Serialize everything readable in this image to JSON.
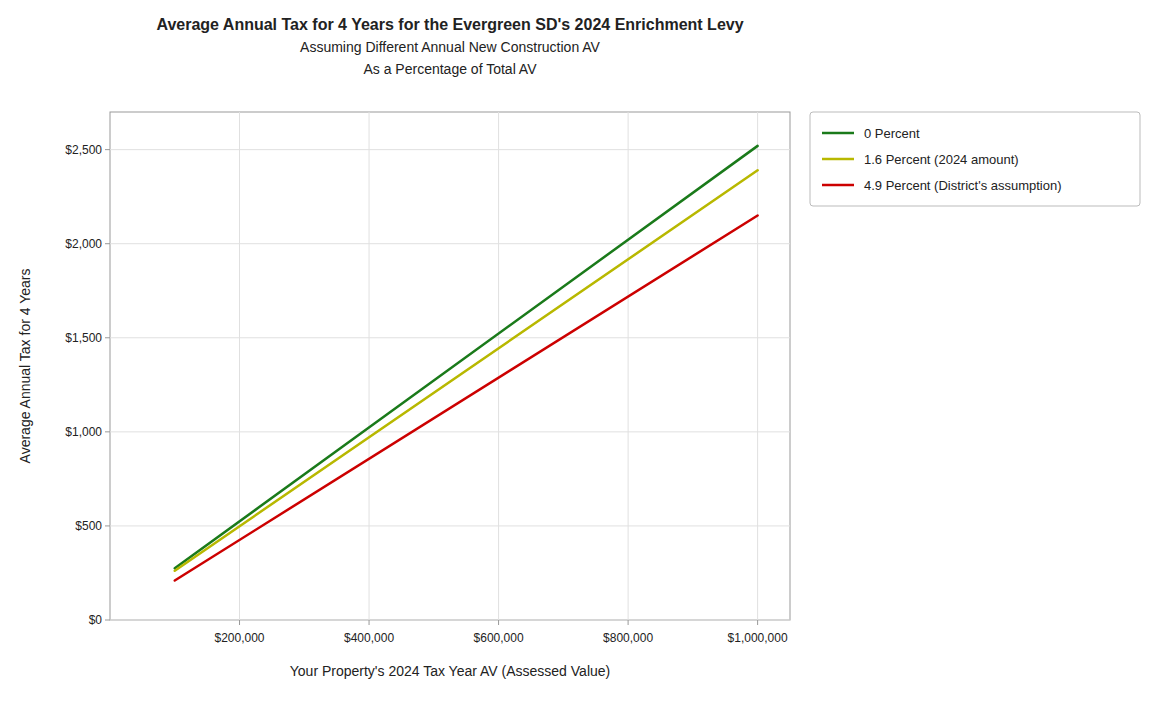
{
  "chart_data": {
    "type": "line",
    "title": "Average Annual Tax for 4 Years for the Evergreen SD's 2024 Enrichment Levy\nAssuming Different Annual New Construction AV\nAs a Percentage of Total AV",
    "x_label": "Your Property's 2024 Tax Year AV (Assessed Value)",
    "y_label": "Average Annual Tax for 4 Years",
    "x": [
      100000,
      1000000
    ],
    "series": [
      {
        "name": "0 Percent",
        "color": "#1a7a1a",
        "values": [
          275,
          2520
        ]
      },
      {
        "name": "1.6 Percent (2024 amount)",
        "color": "#b8b800",
        "values": [
          262,
          2390
        ]
      },
      {
        "name": "4.9 Percent (District's assumption)",
        "color": "#cc0000",
        "values": [
          210,
          2150
        ]
      }
    ],
    "xlim": [
      0,
      1050000
    ],
    "ylim": [
      0,
      2700
    ],
    "xticks": [
      {
        "value": 200000,
        "label": "$200,000"
      },
      {
        "value": 400000,
        "label": "$400,000"
      },
      {
        "value": 600000,
        "label": "$600,000"
      },
      {
        "value": 800000,
        "label": "$800,000"
      },
      {
        "value": 1000000,
        "label": "$1,000,000"
      }
    ],
    "yticks": [
      {
        "value": 0,
        "label": "$0"
      },
      {
        "value": 500,
        "label": "$500"
      },
      {
        "value": 1000,
        "label": "$1,000"
      },
      {
        "value": 1500,
        "label": "$1,500"
      },
      {
        "value": 2000,
        "label": "$2,000"
      },
      {
        "value": 2500,
        "label": "$2,500"
      }
    ],
    "grid": true,
    "legend": "right"
  }
}
